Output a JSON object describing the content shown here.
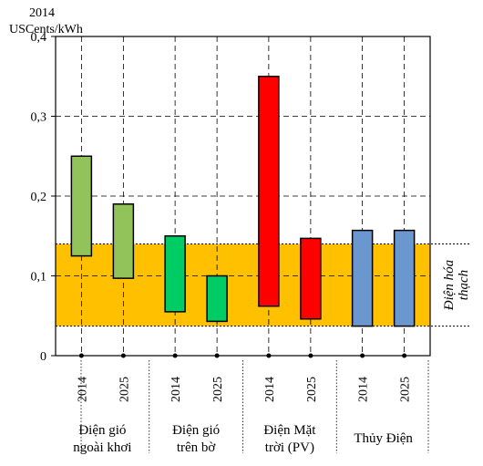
{
  "chart_data": {
    "type": "bar",
    "unit_label": [
      "2014",
      "USCents/kWh"
    ],
    "ylim": [
      0,
      0.4
    ],
    "y_ticks": [
      {
        "value": 0,
        "label": "0"
      },
      {
        "value": 0.1,
        "label": "0,1"
      },
      {
        "value": 0.2,
        "label": "0,2"
      },
      {
        "value": 0.3,
        "label": "0,3"
      },
      {
        "value": 0.4,
        "label": "0,4"
      }
    ],
    "categories": [
      {
        "label": [
          "Điện gió",
          "ngoài khơi"
        ]
      },
      {
        "label": [
          "Điện gió",
          "trên bờ"
        ]
      },
      {
        "label": [
          "Điện Mặt",
          "trời (PV)"
        ]
      },
      {
        "label": [
          "Thủy Điện"
        ]
      }
    ],
    "bars": [
      {
        "category": "Điện gió ngoài khơi",
        "year": "2014",
        "low": 0.125,
        "high": 0.25,
        "color": "#92c35a"
      },
      {
        "category": "Điện gió ngoài khơi",
        "year": "2025",
        "low": 0.097,
        "high": 0.19,
        "color": "#92c35a"
      },
      {
        "category": "Điện gió trên bờ",
        "year": "2014",
        "low": 0.055,
        "high": 0.15,
        "color": "#00cc66"
      },
      {
        "category": "Điện gió trên bờ",
        "year": "2025",
        "low": 0.043,
        "high": 0.1,
        "color": "#00cc66"
      },
      {
        "category": "Điện Mặt trời (PV)",
        "year": "2014",
        "low": 0.062,
        "high": 0.35,
        "color": "#ff0000"
      },
      {
        "category": "Điện Mặt trời (PV)",
        "year": "2025",
        "low": 0.046,
        "high": 0.147,
        "color": "#ff0000"
      },
      {
        "category": "Thủy Điện",
        "year": "2014",
        "low": 0.037,
        "high": 0.157,
        "color": "#6a97cf"
      },
      {
        "category": "Thủy Điện",
        "year": "2025",
        "low": 0.037,
        "high": 0.157,
        "color": "#6a97cf"
      }
    ],
    "fossil_band": {
      "low": 0.037,
      "high": 0.14,
      "color": "#ffc000",
      "label": [
        "Điện hóa",
        "thạch"
      ]
    },
    "grid": true
  }
}
